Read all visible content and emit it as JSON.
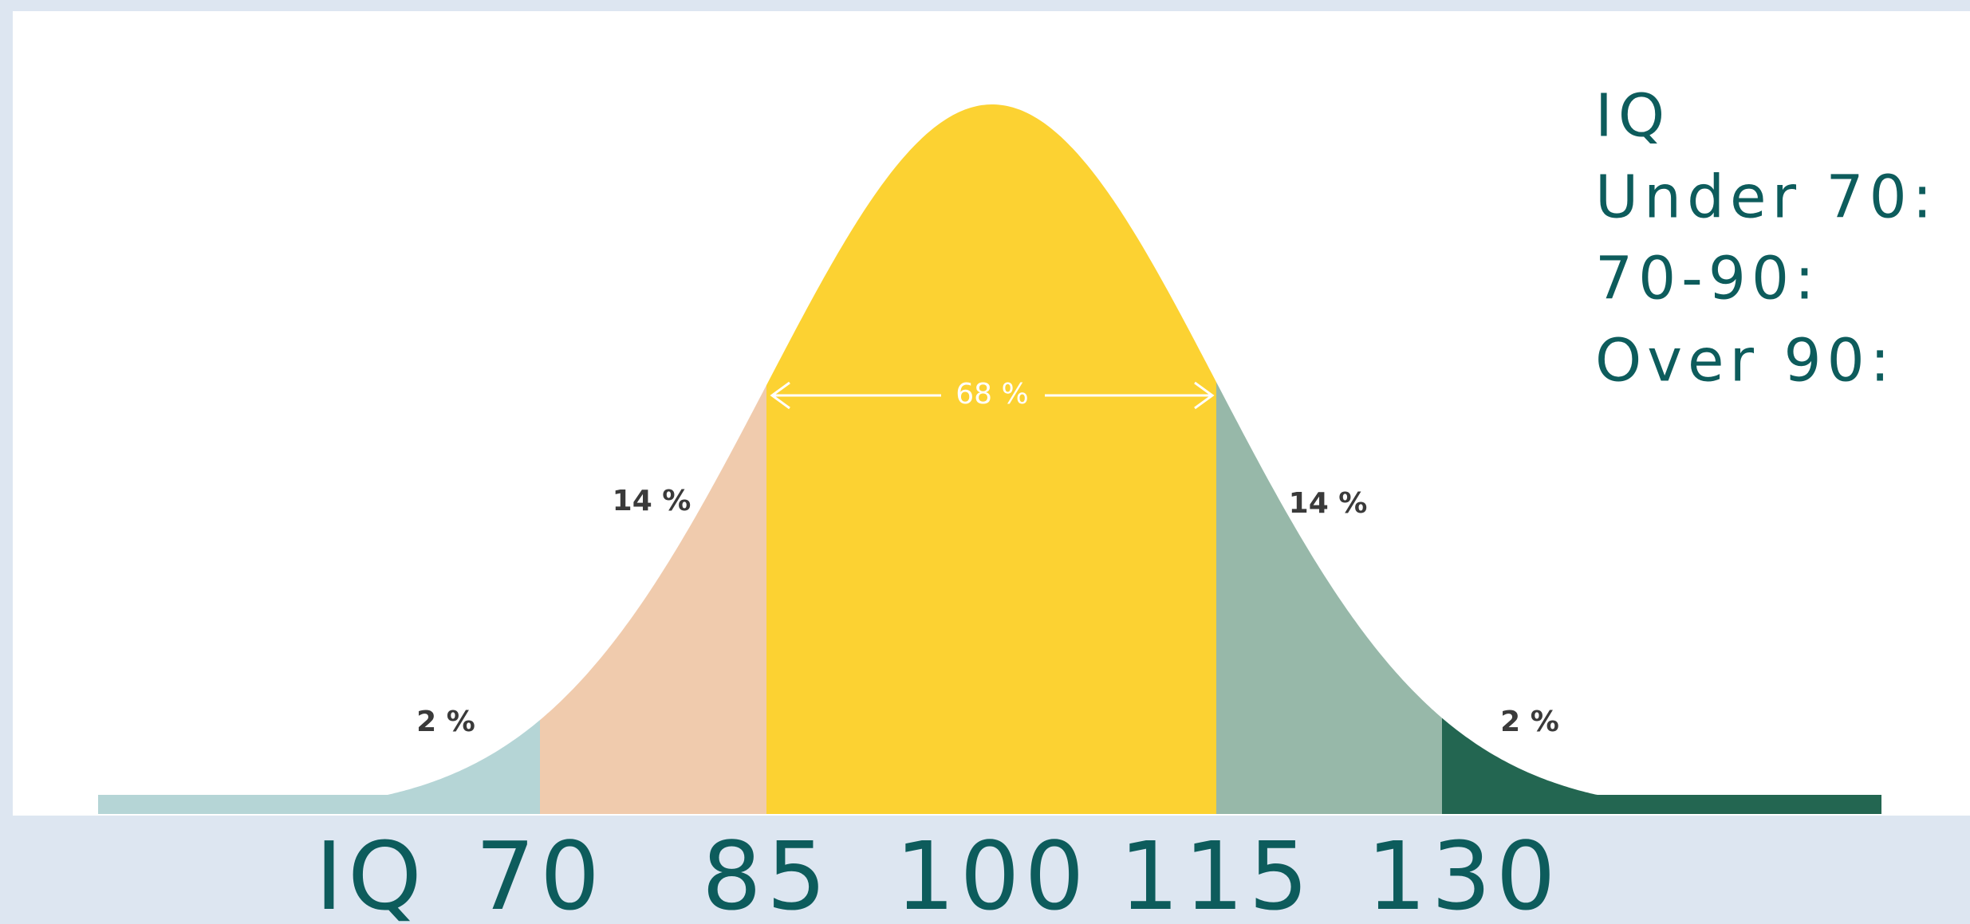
{
  "curve": {
    "regions": [
      {
        "label": "2 %"
      },
      {
        "label": "14 %"
      },
      {
        "label": "68 %"
      },
      {
        "label": "14 %"
      },
      {
        "label": "2 %"
      }
    ]
  },
  "axis": {
    "labels": [
      "IQ",
      "70",
      "85",
      "100",
      "115",
      "130"
    ]
  },
  "legend": {
    "lines": [
      "IQ",
      "Under 70:",
      "70-90:",
      "Over 90:"
    ]
  }
}
